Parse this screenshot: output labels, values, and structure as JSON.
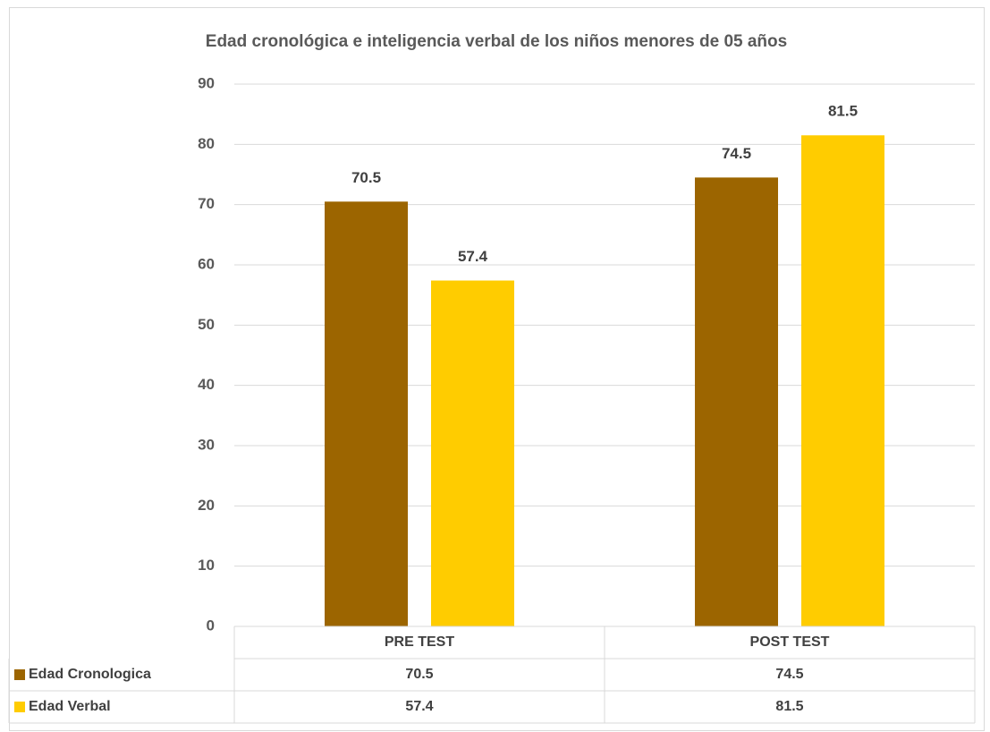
{
  "chart_data": {
    "type": "bar",
    "title": "Edad cronológica e inteligencia verbal de los niños menores de 05 años",
    "categories": [
      "PRE TEST",
      "POST TEST"
    ],
    "series": [
      {
        "name": "Edad Cronologica",
        "color": "#9c6500",
        "values": [
          70.5,
          74.5
        ]
      },
      {
        "name": "Edad Verbal",
        "color": "#ffcc00",
        "values": [
          57.4,
          81.5
        ]
      }
    ],
    "ylim": [
      0,
      90
    ],
    "yticks": [
      0,
      10,
      20,
      30,
      40,
      50,
      60,
      70,
      80,
      90
    ],
    "grid": true,
    "data_table": true
  }
}
